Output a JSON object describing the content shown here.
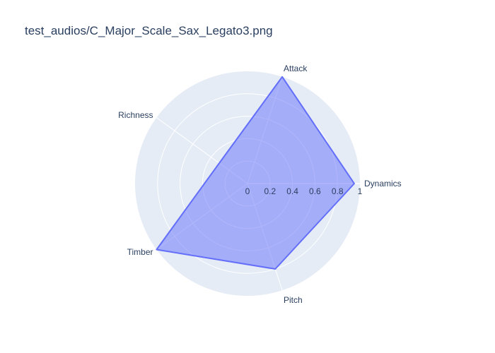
{
  "chart_data": {
    "type": "radar",
    "title": "test_audios/C_Major_Scale_Sax_Legato3.png",
    "categories": [
      "Dynamics",
      "Attack",
      "Richness",
      "Timber",
      "Pitch"
    ],
    "values": [
      0.95,
      1.0,
      0.31,
      1.0,
      0.8
    ],
    "radial_range": [
      0,
      1
    ],
    "radial_ticks": [
      "0",
      "0.2",
      "0.4",
      "0.6",
      "0.8",
      "1"
    ],
    "grid": true,
    "legend": "none",
    "colors": {
      "fill": "#636efa",
      "polar_bg": "#e5ecf6",
      "grid": "#ffffff",
      "text": "#2a3f5f"
    }
  }
}
